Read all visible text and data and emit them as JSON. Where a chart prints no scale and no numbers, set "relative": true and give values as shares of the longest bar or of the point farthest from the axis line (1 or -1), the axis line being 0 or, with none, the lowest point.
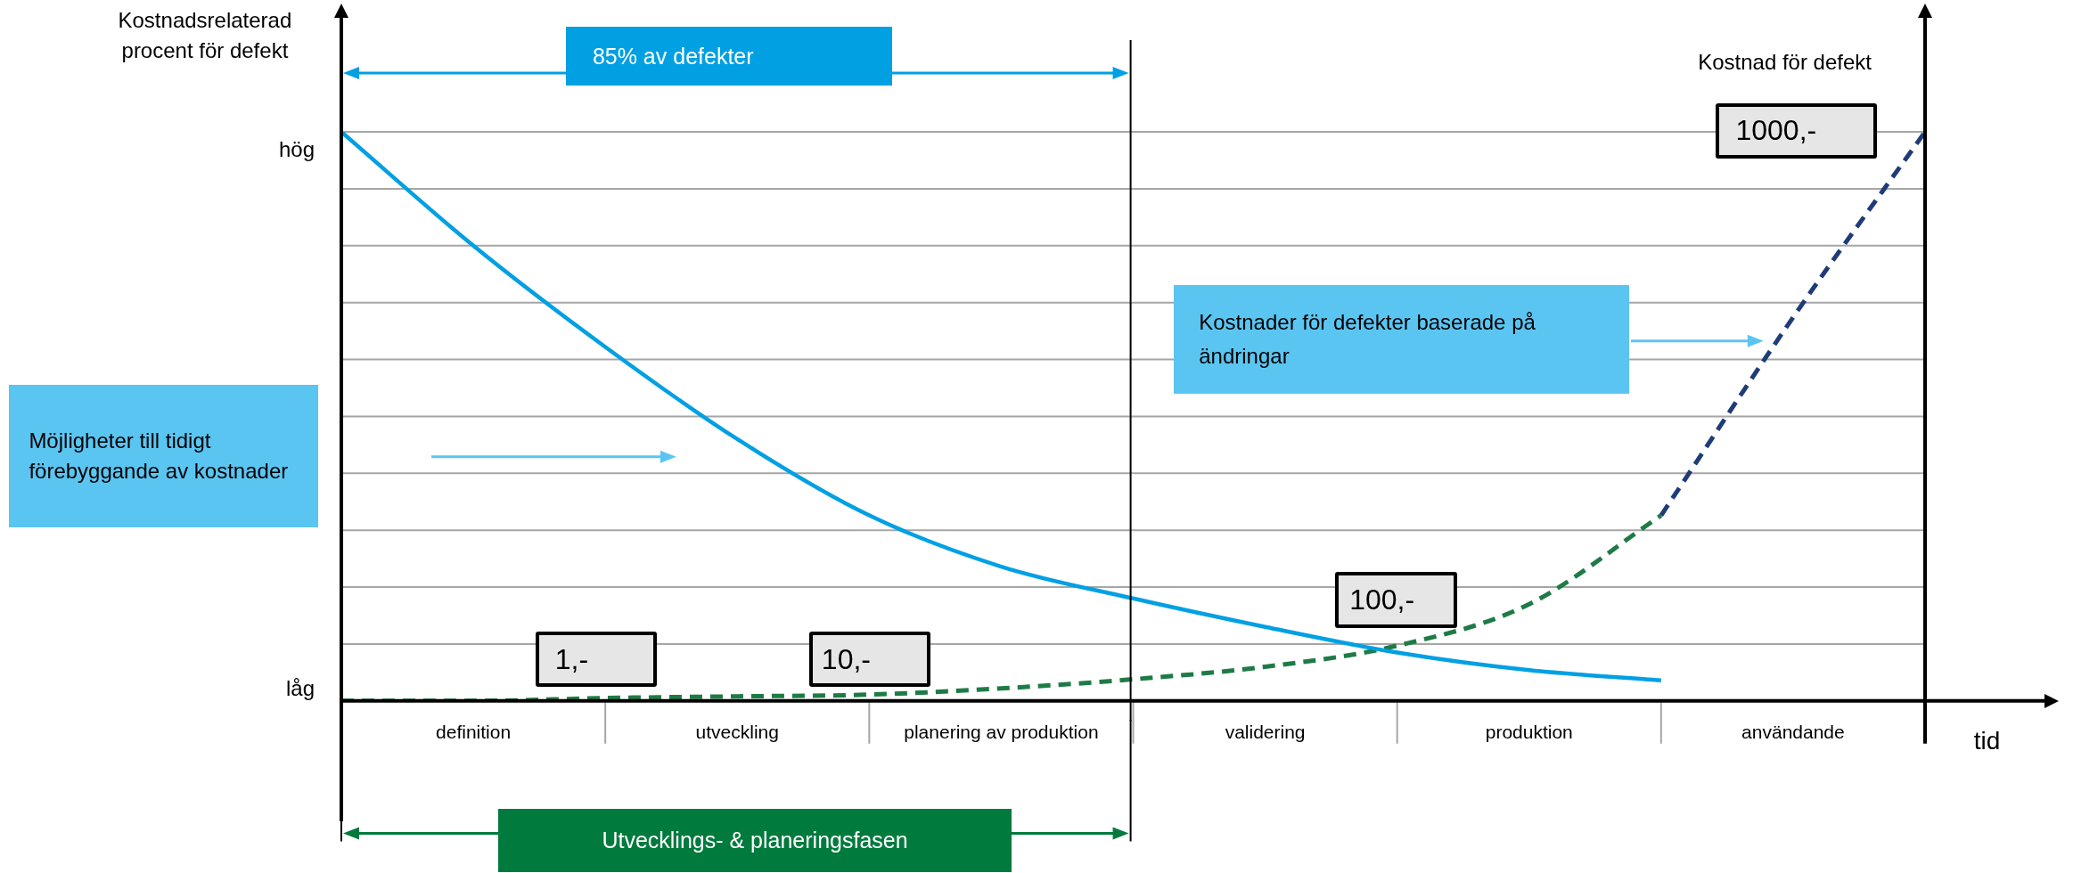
{
  "chart_data": {
    "type": "line",
    "ylabel": "Kostnadsrelaterad procent för defekt",
    "y2label": "Kostnad för defekt",
    "xlabel": "tid",
    "relative": true,
    "grid": true,
    "legend": false,
    "marker": "none",
    "categories": [
      null,
      "definition",
      null,
      "utveckling",
      null,
      "planering av produktion",
      null,
      "validering",
      null,
      "produktion",
      null,
      "användande",
      null
    ],
    "series": [
      {
        "color": "#00a0e3",
        "line_style": "solid",
        "values": [
          1,
          0.8,
          0.622,
          0.46,
          0.326,
          0.236,
          0.18,
          0.13,
          0.085,
          0.054,
          0.036,
          null,
          null
        ]
      },
      {
        "color": "#1e7b45",
        "line_style": "dashed",
        "values": [
          0,
          0,
          0.005,
          0.008,
          0.011,
          0.022,
          0.038,
          0.06,
          0.097,
          0.17,
          0.326,
          null,
          null
        ]
      },
      {
        "color": "#1f3c78",
        "line_style": "dashed",
        "values": [
          null,
          null,
          null,
          null,
          null,
          null,
          null,
          null,
          null,
          null,
          0.326,
          0.674,
          1
        ]
      }
    ],
    "annotations": [
      "85% av defekter",
      "Utvecklings- & planeringsfasen",
      "Möjligheter till tidigt förebyggande av kostnader",
      "Kostnader för defekter baserade på ändringar",
      "1,-",
      "10,-",
      "100,-",
      "1000,-",
      "hög",
      "låg"
    ]
  }
}
